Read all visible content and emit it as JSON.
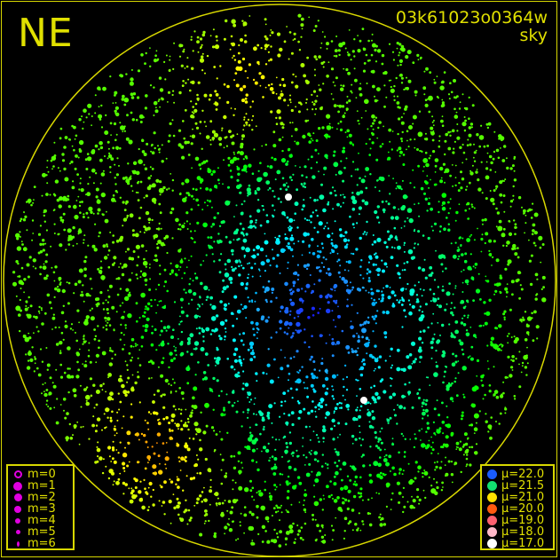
{
  "direction_label": "NE",
  "header": {
    "frame_id": "03k61023o0364w",
    "subtitle": "sky"
  },
  "colors": {
    "frame": "#d8d800",
    "text": "#e0e000",
    "magnitude_symbol": "#e000e0"
  },
  "magnitude_legend": [
    {
      "label": "m=0",
      "style": "ring"
    },
    {
      "label": "m=1",
      "style": "filled"
    },
    {
      "label": "m=2",
      "style": "filled"
    },
    {
      "label": "m=3",
      "style": "filled"
    },
    {
      "label": "m=4",
      "style": "filled"
    },
    {
      "label": "m=5",
      "style": "filled"
    },
    {
      "label": "m=6",
      "style": "filled"
    }
  ],
  "sky_brightness_legend": [
    {
      "label": "μ=22.0",
      "color": "#1a5cff"
    },
    {
      "label": "μ=21.5",
      "color": "#12e070"
    },
    {
      "label": "μ=21.0",
      "color": "#ffe000"
    },
    {
      "label": "μ=20.0",
      "color": "#ff5a10"
    },
    {
      "label": "μ=19.0",
      "color": "#ff6070"
    },
    {
      "label": "μ=18.0",
      "color": "#ffb8c8"
    },
    {
      "label": "μ=17.0",
      "color": "#ffffff"
    }
  ]
}
